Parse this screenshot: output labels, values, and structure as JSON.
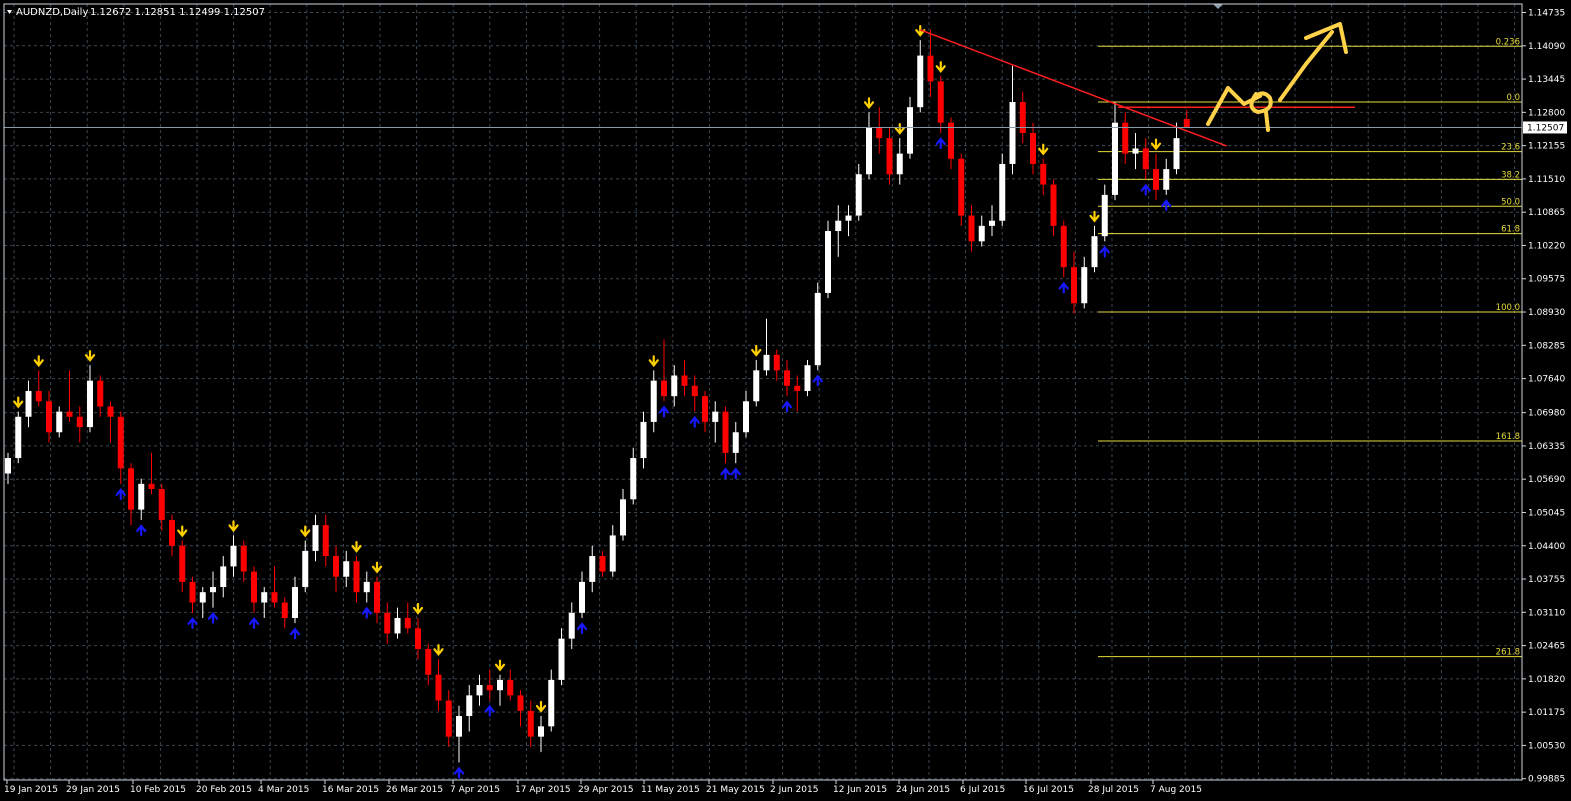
{
  "header": {
    "symbol_label": "AUDNZD,Daily",
    "ohlc_label": "1.12672 1.12851 1.12499 1.12507"
  },
  "colors": {
    "background": "#000000",
    "grid": "#3a4650",
    "bull_candle": "#ffffff",
    "bear_candle": "#ff0000",
    "fractal_up_marker": "#ffd000",
    "fractal_down_marker": "#1818ff",
    "fibonacci": "#e6dc3a",
    "trendline": "#ff1e1e",
    "annotation": "#ffd24a",
    "current_price_line": "#8899aa"
  },
  "chart_data": {
    "type": "candlestick",
    "symbol": "AUDNZD",
    "timeframe": "Daily",
    "ylim": [
      0.9986,
      1.149
    ],
    "y_ticks": [
      "1.14735",
      "1.14090",
      "1.13445",
      "1.12800",
      "1.12155",
      "1.11510",
      "1.10865",
      "1.10220",
      "1.09575",
      "1.08930",
      "1.08285",
      "1.07640",
      "1.06980",
      "1.06335",
      "1.05690",
      "1.05045",
      "1.04400",
      "1.03755",
      "1.03110",
      "1.02465",
      "1.01820",
      "1.01175",
      "1.00530",
      "0.99885"
    ],
    "x_labels": [
      "19 Jan 2015",
      "29 Jan 2015",
      "10 Feb 2015",
      "20 Feb 2015",
      "4 Mar 2015",
      "16 Mar 2015",
      "26 Mar 2015",
      "7 Apr 2015",
      "17 Apr 2015",
      "29 Apr 2015",
      "11 May 2015",
      "21 May 2015",
      "2 Jun 2015",
      "12 Jun 2015",
      "24 Jun 2015",
      "6 Jul 2015",
      "16 Jul 2015",
      "28 Jul 2015",
      "7 Aug 2015"
    ],
    "current_price": "1.12507",
    "candles": [
      [
        1.058,
        1.062,
        1.056,
        1.061
      ],
      [
        1.061,
        1.07,
        1.06,
        1.069
      ],
      [
        1.069,
        1.076,
        1.067,
        1.074
      ],
      [
        1.074,
        1.078,
        1.071,
        1.072
      ],
      [
        1.072,
        1.074,
        1.064,
        1.066
      ],
      [
        1.066,
        1.071,
        1.065,
        1.07
      ],
      [
        1.07,
        1.078,
        1.068,
        1.069
      ],
      [
        1.069,
        1.071,
        1.064,
        1.067
      ],
      [
        1.067,
        1.079,
        1.066,
        1.076
      ],
      [
        1.076,
        1.077,
        1.069,
        1.071
      ],
      [
        1.071,
        1.072,
        1.064,
        1.069
      ],
      [
        1.069,
        1.07,
        1.056,
        1.059
      ],
      [
        1.059,
        1.06,
        1.048,
        1.051
      ],
      [
        1.051,
        1.057,
        1.049,
        1.056
      ],
      [
        1.056,
        1.062,
        1.054,
        1.055
      ],
      [
        1.055,
        1.056,
        1.047,
        1.049
      ],
      [
        1.049,
        1.05,
        1.042,
        1.044
      ],
      [
        1.044,
        1.045,
        1.035,
        1.037
      ],
      [
        1.037,
        1.038,
        1.031,
        1.033
      ],
      [
        1.033,
        1.036,
        1.03,
        1.035
      ],
      [
        1.035,
        1.039,
        1.032,
        1.036
      ],
      [
        1.036,
        1.042,
        1.034,
        1.04
      ],
      [
        1.04,
        1.046,
        1.038,
        1.044
      ],
      [
        1.044,
        1.045,
        1.037,
        1.039
      ],
      [
        1.039,
        1.04,
        1.031,
        1.033
      ],
      [
        1.033,
        1.036,
        1.03,
        1.035
      ],
      [
        1.035,
        1.04,
        1.032,
        1.033
      ],
      [
        1.033,
        1.034,
        1.028,
        1.03
      ],
      [
        1.03,
        1.038,
        1.029,
        1.036
      ],
      [
        1.036,
        1.045,
        1.035,
        1.043
      ],
      [
        1.043,
        1.05,
        1.041,
        1.048
      ],
      [
        1.048,
        1.05,
        1.04,
        1.042
      ],
      [
        1.042,
        1.044,
        1.035,
        1.038
      ],
      [
        1.038,
        1.043,
        1.036,
        1.041
      ],
      [
        1.041,
        1.042,
        1.033,
        1.035
      ],
      [
        1.035,
        1.039,
        1.033,
        1.037
      ],
      [
        1.037,
        1.038,
        1.029,
        1.031
      ],
      [
        1.031,
        1.033,
        1.025,
        1.027
      ],
      [
        1.027,
        1.032,
        1.026,
        1.03
      ],
      [
        1.03,
        1.033,
        1.027,
        1.028
      ],
      [
        1.028,
        1.03,
        1.022,
        1.024
      ],
      [
        1.024,
        1.025,
        1.017,
        1.019
      ],
      [
        1.019,
        1.022,
        1.012,
        1.014
      ],
      [
        1.014,
        1.016,
        1.005,
        1.007
      ],
      [
        1.007,
        1.013,
        1.002,
        1.011
      ],
      [
        1.011,
        1.017,
        1.008,
        1.015
      ],
      [
        1.015,
        1.019,
        1.013,
        1.017
      ],
      [
        1.017,
        1.02,
        1.014,
        1.016
      ],
      [
        1.016,
        1.019,
        1.013,
        1.018
      ],
      [
        1.018,
        1.02,
        1.014,
        1.015
      ],
      [
        1.015,
        1.016,
        1.009,
        1.012
      ],
      [
        1.012,
        1.014,
        1.005,
        1.007
      ],
      [
        1.007,
        1.011,
        1.004,
        1.009
      ],
      [
        1.009,
        1.02,
        1.008,
        1.018
      ],
      [
        1.018,
        1.028,
        1.017,
        1.026
      ],
      [
        1.026,
        1.033,
        1.024,
        1.031
      ],
      [
        1.031,
        1.039,
        1.03,
        1.037
      ],
      [
        1.037,
        1.044,
        1.035,
        1.042
      ],
      [
        1.042,
        1.043,
        1.038,
        1.039
      ],
      [
        1.039,
        1.048,
        1.038,
        1.046
      ],
      [
        1.046,
        1.055,
        1.045,
        1.053
      ],
      [
        1.053,
        1.063,
        1.052,
        1.061
      ],
      [
        1.061,
        1.07,
        1.059,
        1.068
      ],
      [
        1.068,
        1.078,
        1.066,
        1.076
      ],
      [
        1.076,
        1.084,
        1.072,
        1.073
      ],
      [
        1.073,
        1.079,
        1.071,
        1.077
      ],
      [
        1.077,
        1.08,
        1.073,
        1.075
      ],
      [
        1.075,
        1.077,
        1.07,
        1.073
      ],
      [
        1.073,
        1.074,
        1.066,
        1.068
      ],
      [
        1.068,
        1.072,
        1.064,
        1.07
      ],
      [
        1.07,
        1.071,
        1.06,
        1.062
      ],
      [
        1.062,
        1.068,
        1.06,
        1.066
      ],
      [
        1.066,
        1.074,
        1.065,
        1.072
      ],
      [
        1.072,
        1.08,
        1.071,
        1.078
      ],
      [
        1.078,
        1.088,
        1.077,
        1.081
      ],
      [
        1.081,
        1.082,
        1.076,
        1.078
      ],
      [
        1.078,
        1.08,
        1.073,
        1.075
      ],
      [
        1.075,
        1.077,
        1.07,
        1.074
      ],
      [
        1.074,
        1.08,
        1.073,
        1.079
      ],
      [
        1.079,
        1.095,
        1.078,
        1.093
      ],
      [
        1.093,
        1.107,
        1.092,
        1.105
      ],
      [
        1.105,
        1.11,
        1.1,
        1.107
      ],
      [
        1.107,
        1.11,
        1.104,
        1.108
      ],
      [
        1.108,
        1.118,
        1.107,
        1.116
      ],
      [
        1.116,
        1.128,
        1.115,
        1.125
      ],
      [
        1.125,
        1.129,
        1.12,
        1.123
      ],
      [
        1.123,
        1.125,
        1.114,
        1.116
      ],
      [
        1.116,
        1.123,
        1.114,
        1.12
      ],
      [
        1.12,
        1.131,
        1.119,
        1.129
      ],
      [
        1.129,
        1.142,
        1.128,
        1.139
      ],
      [
        1.139,
        1.144,
        1.131,
        1.134
      ],
      [
        1.134,
        1.135,
        1.124,
        1.126
      ],
      [
        1.126,
        1.127,
        1.117,
        1.119
      ],
      [
        1.119,
        1.12,
        1.106,
        1.108
      ],
      [
        1.108,
        1.11,
        1.101,
        1.103
      ],
      [
        1.103,
        1.108,
        1.102,
        1.106
      ],
      [
        1.106,
        1.11,
        1.104,
        1.107
      ],
      [
        1.107,
        1.12,
        1.106,
        1.118
      ],
      [
        1.118,
        1.137,
        1.116,
        1.13
      ],
      [
        1.13,
        1.132,
        1.122,
        1.124
      ],
      [
        1.124,
        1.126,
        1.116,
        1.118
      ],
      [
        1.118,
        1.119,
        1.112,
        1.114
      ],
      [
        1.114,
        1.115,
        1.104,
        1.106
      ],
      [
        1.106,
        1.107,
        1.096,
        1.098
      ],
      [
        1.098,
        1.101,
        1.089,
        1.091
      ],
      [
        1.091,
        1.1,
        1.09,
        1.098
      ],
      [
        1.098,
        1.106,
        1.097,
        1.104
      ],
      [
        1.104,
        1.114,
        1.103,
        1.112
      ],
      [
        1.112,
        1.13,
        1.111,
        1.126
      ],
      [
        1.126,
        1.128,
        1.118,
        1.12
      ],
      [
        1.12,
        1.124,
        1.117,
        1.121
      ],
      [
        1.121,
        1.123,
        1.115,
        1.117
      ],
      [
        1.117,
        1.12,
        1.111,
        1.113
      ],
      [
        1.113,
        1.119,
        1.112,
        1.117
      ],
      [
        1.117,
        1.126,
        1.116,
        1.123
      ],
      [
        1.1267,
        1.1285,
        1.125,
        1.1251
      ]
    ],
    "fibonacci": [
      {
        "level": "0.236",
        "price": 1.1408
      },
      {
        "level": "0.0",
        "price": 1.13
      },
      {
        "level": "23.6",
        "price": 1.1204
      },
      {
        "level": "38.2",
        "price": 1.115
      },
      {
        "level": "50.0",
        "price": 1.1098
      },
      {
        "level": "61.8",
        "price": 1.1045
      },
      {
        "level": "100.0",
        "price": 1.0893
      },
      {
        "level": "161.8",
        "price": 1.0643
      },
      {
        "level": "261.8",
        "price": 1.0225
      }
    ],
    "up_fractals": [
      1,
      3,
      8,
      17,
      22,
      29,
      34,
      36,
      40,
      42,
      48,
      52,
      63,
      73,
      84,
      87,
      89,
      91,
      101,
      106,
      112
    ],
    "down_fractals": [
      11,
      13,
      18,
      20,
      24,
      28,
      35,
      44,
      47,
      56,
      64,
      67,
      70,
      71,
      76,
      79,
      91,
      103,
      107,
      111,
      113
    ],
    "trendline": {
      "start_index": 89,
      "start_price": 1.144,
      "end_index": 114,
      "end_price": 1.118
    }
  }
}
